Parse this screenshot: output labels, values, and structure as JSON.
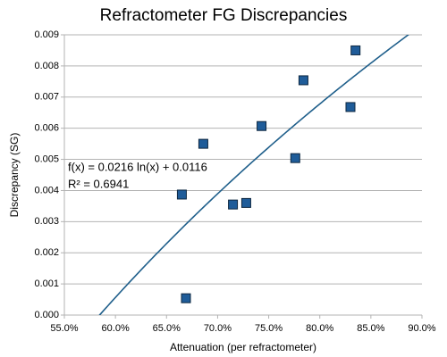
{
  "chart_data": {
    "type": "scatter",
    "title": "Refractometer FG Discrepancies",
    "x_label": "Attenuation (per refractometer)",
    "y_label": "Discrepancy (SG)",
    "series": [
      {
        "name": "Discrepancy",
        "color": "#1f5c99",
        "x": [
          0.669,
          0.665,
          0.686,
          0.715,
          0.728,
          0.743,
          0.776,
          0.784,
          0.83,
          0.835
        ],
        "values": [
          0.00054,
          0.00387,
          0.0055,
          0.00355,
          0.0036,
          0.00607,
          0.00504,
          0.00754,
          0.00668,
          0.0085
        ]
      }
    ],
    "trendline": {
      "type": "log",
      "coefficients": [
        0.0216,
        0.0116
      ],
      "color": "#1f5f8b",
      "equation_label": "f(x) = 0.0216 ln(x) + 0.0116",
      "r2_label": "R² = 0.6941"
    },
    "xlim": [
      0.55,
      0.9
    ],
    "xticks": [
      {
        "value": 0.55,
        "label": "55.0%"
      },
      {
        "value": 0.6,
        "label": "60.0%"
      },
      {
        "value": 0.65,
        "label": "65.0%"
      },
      {
        "value": 0.7,
        "label": "70.0%"
      },
      {
        "value": 0.75,
        "label": "75.0%"
      },
      {
        "value": 0.8,
        "label": "80.0%"
      },
      {
        "value": 0.85,
        "label": "85.0%"
      },
      {
        "value": 0.9,
        "label": "90.0%"
      }
    ],
    "ylim": [
      0,
      0.009
    ],
    "yticks": [
      {
        "value": 0,
        "label": "0.000"
      },
      {
        "value": 0.001,
        "label": "0.001"
      },
      {
        "value": 0.002,
        "label": "0.002"
      },
      {
        "value": 0.003,
        "label": "0.003"
      },
      {
        "value": 0.004,
        "label": "0.004"
      },
      {
        "value": 0.005,
        "label": "0.005"
      },
      {
        "value": 0.006,
        "label": "0.006"
      },
      {
        "value": 0.007,
        "label": "0.007"
      },
      {
        "value": 0.008,
        "label": "0.008"
      },
      {
        "value": 0.009,
        "label": "0.009"
      }
    ],
    "grid": true
  }
}
